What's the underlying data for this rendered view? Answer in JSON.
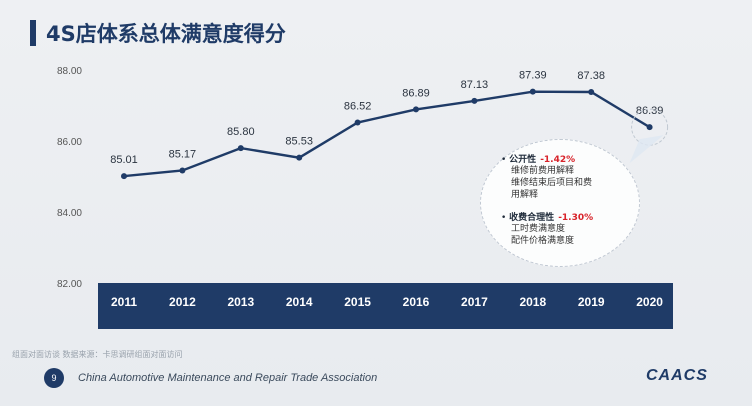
{
  "title": "4S店体系总体满意度得分",
  "chart_data": {
    "type": "line",
    "title": "4S店体系总体满意度得分",
    "x": [
      "2011",
      "2012",
      "2013",
      "2014",
      "2015",
      "2016",
      "2017",
      "2018",
      "2019",
      "2020"
    ],
    "values": [
      85.01,
      85.17,
      85.8,
      85.53,
      86.52,
      86.89,
      87.13,
      87.39,
      87.38,
      86.39
    ],
    "value_labels": [
      "85.01",
      "85.17",
      "85.80",
      "85.53",
      "86.52",
      "86.89",
      "87.13",
      "87.39",
      "87.38",
      "86.39"
    ],
    "y_ticks": [
      "88.00",
      "86.00",
      "84.00",
      "82.00"
    ],
    "ylim": [
      82,
      88
    ],
    "grid": false,
    "colors": {
      "line": "#1f3b67",
      "axis_band": "#1f3b67"
    }
  },
  "callout": {
    "group1_title": "公开性",
    "group1_pct": "-1.42%",
    "group1_items": [
      "维修前费用解释",
      "维修结束后项目和费",
      "用解释"
    ],
    "group2_title": "收费合理性",
    "group2_pct": "-1.30%",
    "group2_items": [
      "工时费满意度",
      "配件价格满意度"
    ]
  },
  "footer": {
    "source": "组面对面访谈 数据来源：卡思调研组面对面访问",
    "page": "9",
    "association": "China Automotive Maintenance and Repair Trade Association",
    "logo": "CAACS"
  }
}
